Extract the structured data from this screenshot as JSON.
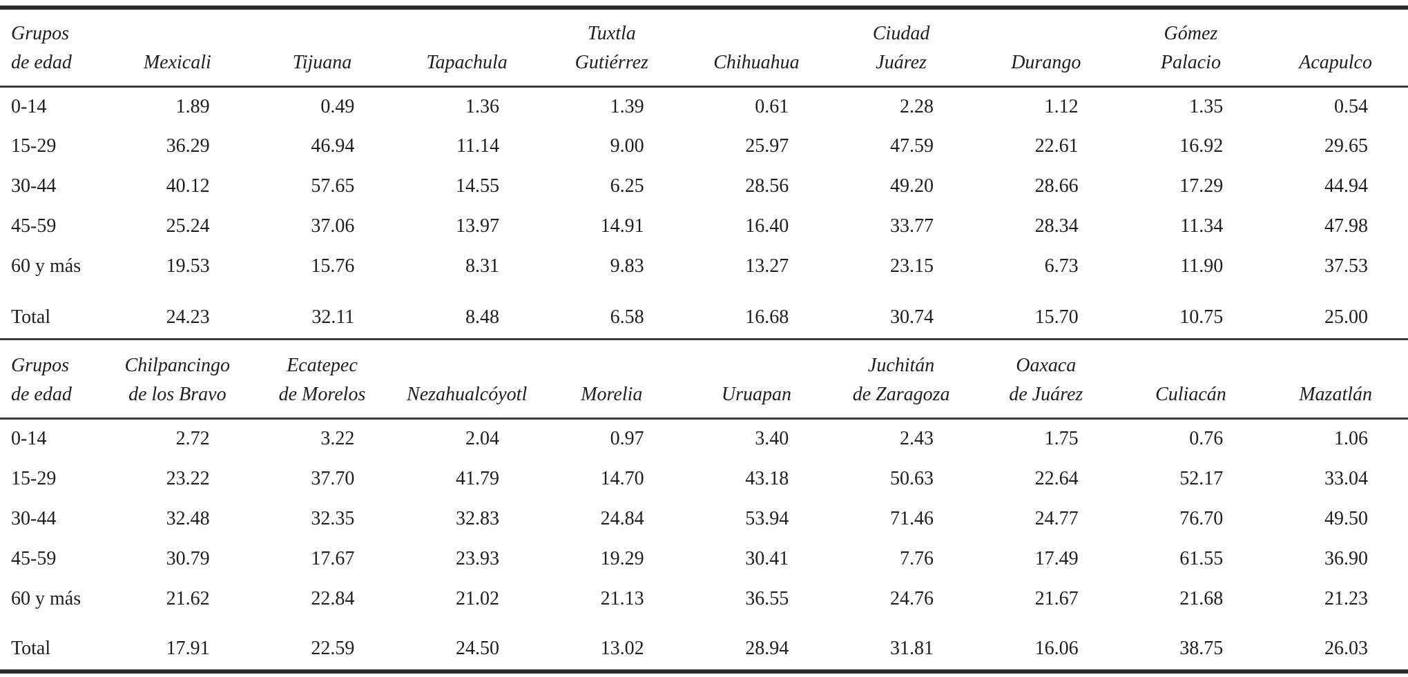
{
  "colors": {
    "background": "#ffffff",
    "text": "#1e1e1e",
    "thick_rule": "#2c2c2c",
    "thin_rule": "#3a3a3a"
  },
  "tables": [
    {
      "name": "age-distribution-cities-part-1",
      "label_header_lines": [
        "Grupos",
        "de edad"
      ],
      "city_columns": [
        [
          "Mexicali"
        ],
        [
          "Tijuana"
        ],
        [
          "Tapachula"
        ],
        [
          "Tuxtla",
          "Gutiérrez"
        ],
        [
          "Chihuahua"
        ],
        [
          "Ciudad",
          "Juárez"
        ],
        [
          "Durango"
        ],
        [
          "Gómez",
          "Palacio"
        ],
        [
          "Acapulco"
        ]
      ],
      "rows": [
        {
          "label": "0-14",
          "values": [
            "1.89",
            "0.49",
            "1.36",
            "1.39",
            "0.61",
            "2.28",
            "1.12",
            "1.35",
            "0.54"
          ]
        },
        {
          "label": "15-29",
          "values": [
            "36.29",
            "46.94",
            "11.14",
            "9.00",
            "25.97",
            "47.59",
            "22.61",
            "16.92",
            "29.65"
          ]
        },
        {
          "label": "30-44",
          "values": [
            "40.12",
            "57.65",
            "14.55",
            "6.25",
            "28.56",
            "49.20",
            "28.66",
            "17.29",
            "44.94"
          ]
        },
        {
          "label": "45-59",
          "values": [
            "25.24",
            "37.06",
            "13.97",
            "14.91",
            "16.40",
            "33.77",
            "28.34",
            "11.34",
            "47.98"
          ]
        },
        {
          "label": "60 y más",
          "values": [
            "19.53",
            "15.76",
            "8.31",
            "9.83",
            "13.27",
            "23.15",
            "6.73",
            "11.90",
            "37.53"
          ]
        },
        {
          "label": "Total",
          "values": [
            "24.23",
            "32.11",
            "8.48",
            "6.58",
            "16.68",
            "30.74",
            "15.70",
            "10.75",
            "25.00"
          ],
          "is_total": true
        }
      ]
    },
    {
      "name": "age-distribution-cities-part-2",
      "label_header_lines": [
        "Grupos",
        "de edad"
      ],
      "city_columns": [
        [
          "Chilpancingo",
          "de los Bravo"
        ],
        [
          "Ecatepec",
          "de Morelos"
        ],
        [
          "Nezahualcóyotl"
        ],
        [
          "Morelia"
        ],
        [
          "Uruapan"
        ],
        [
          "Juchitán",
          "de Zaragoza"
        ],
        [
          "Oaxaca",
          "de Juárez"
        ],
        [
          "Culiacán"
        ],
        [
          "Mazatlán"
        ]
      ],
      "rows": [
        {
          "label": "0-14",
          "values": [
            "2.72",
            "3.22",
            "2.04",
            "0.97",
            "3.40",
            "2.43",
            "1.75",
            "0.76",
            "1.06"
          ]
        },
        {
          "label": "15-29",
          "values": [
            "23.22",
            "37.70",
            "41.79",
            "14.70",
            "43.18",
            "50.63",
            "22.64",
            "52.17",
            "33.04"
          ]
        },
        {
          "label": "30-44",
          "values": [
            "32.48",
            "32.35",
            "32.83",
            "24.84",
            "53.94",
            "71.46",
            "24.77",
            "76.70",
            "49.50"
          ]
        },
        {
          "label": "45-59",
          "values": [
            "30.79",
            "17.67",
            "23.93",
            "19.29",
            "30.41",
            "7.76",
            "17.49",
            "61.55",
            "36.90"
          ]
        },
        {
          "label": "60 y más",
          "values": [
            "21.62",
            "22.84",
            "21.02",
            "21.13",
            "36.55",
            "24.76",
            "21.67",
            "21.68",
            "21.23"
          ]
        },
        {
          "label": "Total",
          "values": [
            "17.91",
            "22.59",
            "24.50",
            "13.02",
            "28.94",
            "31.81",
            "16.06",
            "38.75",
            "26.03"
          ],
          "is_total": true
        }
      ]
    }
  ]
}
